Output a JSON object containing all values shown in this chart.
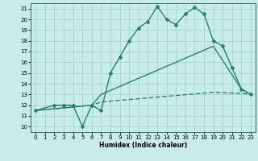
{
  "xlabel": "Humidex (Indice chaleur)",
  "bg_color": "#c8ecea",
  "line_color": "#2d7d72",
  "xlim": [
    -0.5,
    23.5
  ],
  "ylim": [
    9.5,
    21.5
  ],
  "xticks": [
    0,
    1,
    2,
    3,
    4,
    5,
    6,
    7,
    8,
    9,
    10,
    11,
    12,
    13,
    14,
    15,
    16,
    17,
    18,
    19,
    20,
    21,
    22,
    23
  ],
  "yticks": [
    10,
    11,
    12,
    13,
    14,
    15,
    16,
    17,
    18,
    19,
    20,
    21
  ],
  "grid_color": "#a8d8d4",
  "curve1_x": [
    0,
    2,
    3,
    4,
    5,
    6,
    7,
    8,
    9,
    10,
    11,
    12,
    13,
    14,
    15,
    16,
    17,
    18,
    19,
    20,
    21,
    22,
    23
  ],
  "curve1_y": [
    11.5,
    12.0,
    12.0,
    12.0,
    10.0,
    12.0,
    11.5,
    15.0,
    16.5,
    18.0,
    19.2,
    19.8,
    21.2,
    20.0,
    19.5,
    20.5,
    21.1,
    20.5,
    18.0,
    17.5,
    15.5,
    13.5,
    13.0
  ],
  "curve2_x": [
    0,
    6,
    7,
    19,
    22,
    23
  ],
  "curve2_y": [
    11.5,
    12.0,
    13.0,
    17.5,
    13.5,
    13.0
  ],
  "curve3_x": [
    0,
    6,
    7,
    19,
    22,
    23
  ],
  "curve3_y": [
    11.5,
    12.0,
    12.3,
    13.2,
    13.1,
    13.0
  ]
}
